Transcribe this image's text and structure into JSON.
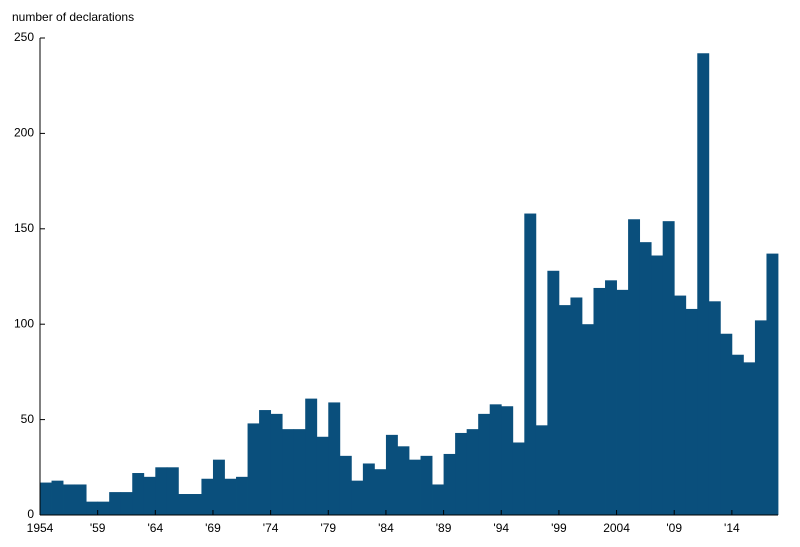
{
  "chart_data": {
    "type": "bar",
    "y_label": "number of declarations",
    "x": [
      1954,
      1955,
      1956,
      1957,
      1958,
      1959,
      1960,
      1961,
      1962,
      1963,
      1964,
      1965,
      1966,
      1967,
      1968,
      1969,
      1970,
      1971,
      1972,
      1973,
      1974,
      1975,
      1976,
      1977,
      1978,
      1979,
      1980,
      1981,
      1982,
      1983,
      1984,
      1985,
      1986,
      1987,
      1988,
      1989,
      1990,
      1991,
      1992,
      1993,
      1994,
      1995,
      1996,
      1997,
      1998,
      1999,
      2000,
      2001,
      2002,
      2003,
      2004,
      2005,
      2006,
      2007,
      2008,
      2009,
      2010,
      2011,
      2012,
      2013,
      2014,
      2015,
      2016,
      2017
    ],
    "values": [
      17,
      18,
      16,
      16,
      7,
      7,
      12,
      12,
      22,
      20,
      25,
      25,
      11,
      11,
      19,
      29,
      19,
      20,
      48,
      55,
      53,
      45,
      45,
      61,
      41,
      59,
      31,
      18,
      27,
      24,
      42,
      36,
      29,
      31,
      16,
      32,
      43,
      45,
      53,
      58,
      57,
      38,
      158,
      47,
      128,
      110,
      114,
      100,
      119,
      123,
      118,
      155,
      143,
      136,
      154,
      115,
      108,
      242,
      112,
      95,
      84,
      80,
      102,
      137
    ],
    "color": "#0a4f7c",
    "xlim": [
      1954,
      2018
    ],
    "xticks": [
      1954,
      {
        "value": 1959,
        "label": "'59"
      },
      {
        "value": 1964,
        "label": "'64"
      },
      {
        "value": 1969,
        "label": "'69"
      },
      {
        "value": 1974,
        "label": "'74"
      },
      {
        "value": 1979,
        "label": "'79"
      },
      {
        "value": 1984,
        "label": "'84"
      },
      {
        "value": 1989,
        "label": "'89"
      },
      {
        "value": 1994,
        "label": "'94"
      },
      {
        "value": 1999,
        "label": "'99"
      },
      2004,
      {
        "value": 2009,
        "label": "'09"
      },
      {
        "value": 2014,
        "label": "'14"
      }
    ],
    "ylim": [
      0,
      250
    ],
    "yticks": [
      0,
      50,
      100,
      150,
      200,
      250
    ]
  }
}
